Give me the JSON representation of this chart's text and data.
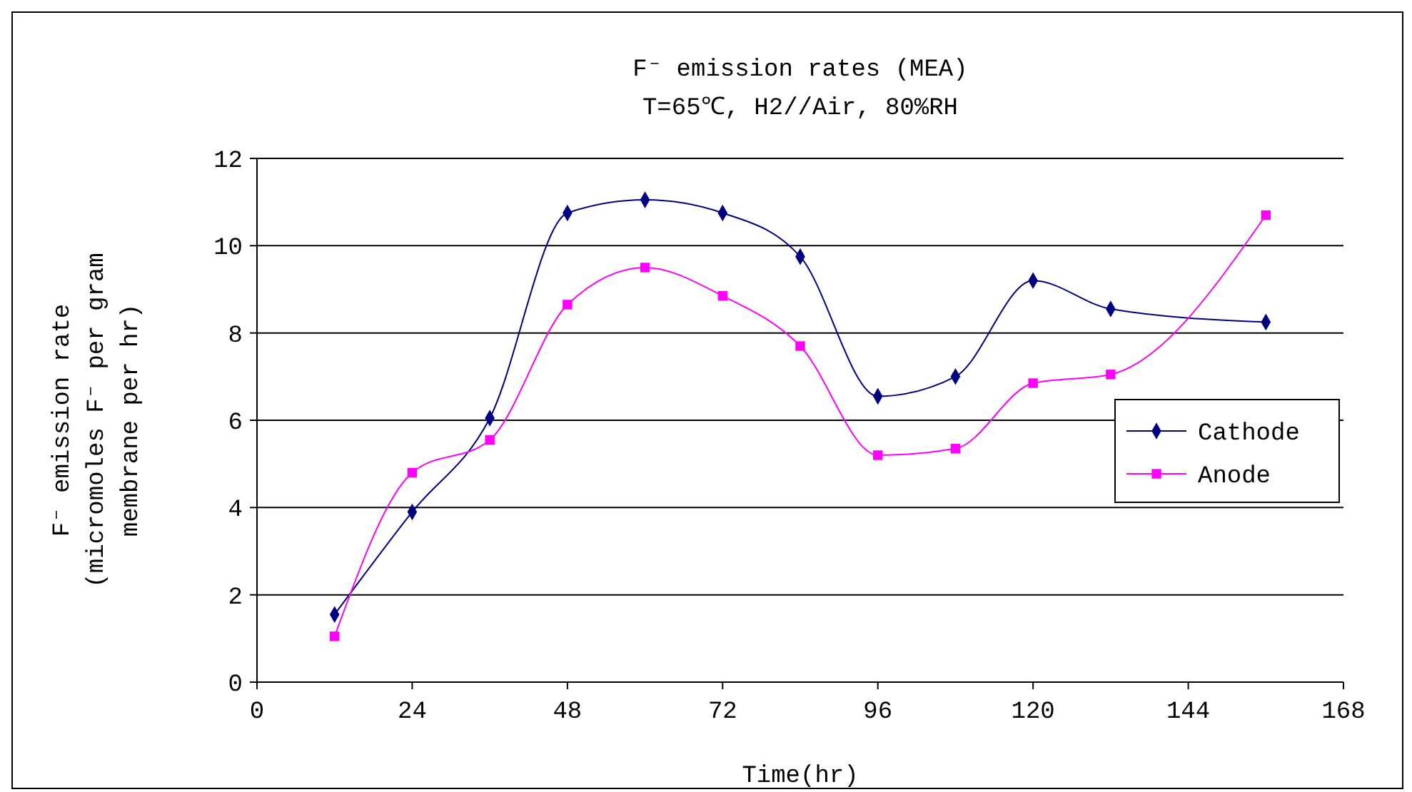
{
  "chart_data": {
    "type": "line",
    "title": "F⁻ emission rates (MEA)",
    "subtitle": "T=65℃, H2//Air, 80%RH",
    "xlabel": "Time(hr)",
    "ylabel": "F⁻ emission rate\n(micromoles F⁻ per gram\nmembrane per hr)",
    "x": [
      12,
      24,
      36,
      48,
      60,
      72,
      84,
      96,
      108,
      120,
      132,
      156
    ],
    "series": [
      {
        "name": "Cathode",
        "color": "#000080",
        "marker": "diamond",
        "values": [
          1.55,
          3.9,
          6.05,
          10.75,
          11.05,
          10.75,
          9.75,
          6.55,
          7.0,
          9.2,
          8.55,
          8.25
        ]
      },
      {
        "name": "Anode",
        "color": "#ff00ff",
        "marker": "square",
        "values": [
          1.05,
          4.8,
          5.55,
          8.65,
          9.5,
          8.85,
          7.7,
          5.2,
          5.35,
          6.85,
          7.05,
          10.7
        ]
      }
    ],
    "xlim": [
      0,
      168
    ],
    "xticks": [
      0,
      24,
      48,
      72,
      96,
      120,
      144,
      168
    ],
    "ylim": [
      0,
      12
    ],
    "yticks": [
      0,
      2,
      4,
      6,
      8,
      10,
      12
    ],
    "grid": "y",
    "legend": "right"
  }
}
